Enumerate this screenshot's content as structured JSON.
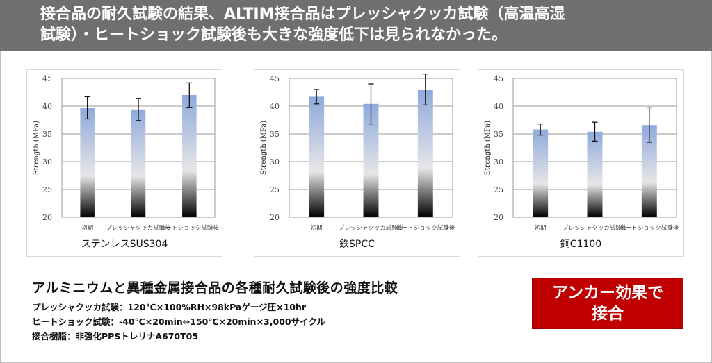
{
  "header": {
    "line1": "接合品の耐久試験の結果、ALTIM接合品はプレッシャクッカ試験（高温高湿",
    "line2": "試験）・ヒートショック試験後も大きな強度低下は見られなかった。"
  },
  "chart_data": [
    {
      "type": "bar",
      "title": "ステンレスSUS304",
      "ylabel": "Strength (MPa)",
      "ylim": [
        20,
        45
      ],
      "yticks": [
        20,
        25,
        30,
        35,
        40,
        45
      ],
      "grid": true,
      "categories": [
        "初期",
        "プレッシャクッカ試験後",
        "ヒートショック試験後"
      ],
      "values": [
        39.7,
        39.4,
        42.0
      ],
      "error": [
        2.0,
        2.0,
        2.2
      ]
    },
    {
      "type": "bar",
      "title": "鉄SPCC",
      "ylabel": "Strength (MPa)",
      "ylim": [
        20,
        45
      ],
      "yticks": [
        20,
        25,
        30,
        35,
        40,
        45
      ],
      "grid": true,
      "categories": [
        "初期",
        "プレッシャクッカ試験後",
        "ヒートショック試験後"
      ],
      "values": [
        41.7,
        40.4,
        43.0
      ],
      "error": [
        1.3,
        3.6,
        2.8
      ]
    },
    {
      "type": "bar",
      "title": "銅C1100",
      "ylabel": "Strength (MPa)",
      "ylim": [
        20,
        45
      ],
      "yticks": [
        20,
        25,
        30,
        35,
        40,
        45
      ],
      "grid": true,
      "categories": [
        "初期",
        "プレッシャクッカ試験後",
        "ヒートショック試験後"
      ],
      "values": [
        35.8,
        35.4,
        36.6
      ],
      "error": [
        1.0,
        1.7,
        3.1
      ]
    }
  ],
  "caption": {
    "title": "アルミニウムと異種金属接合品の各種耐久試験後の強度比較",
    "line1": "プレッシャクッカ試験：120℃×100%RH×98kPaゲージ圧×10hr",
    "line2": "ヒートショック試験：-40℃×20min⇔150℃×20min×3,000サイクル",
    "line3": "接合樹脂：非強化PPSトレリナA670T05"
  },
  "badge": {
    "line1": "アンカー効果で",
    "line2": "接合"
  },
  "colors": {
    "banner": "#6f6f6f",
    "badge": "#c00000",
    "bar_top": "#8fa9dc",
    "bar_mid": "#e6e6e6",
    "bar_bottom": "#000000"
  }
}
